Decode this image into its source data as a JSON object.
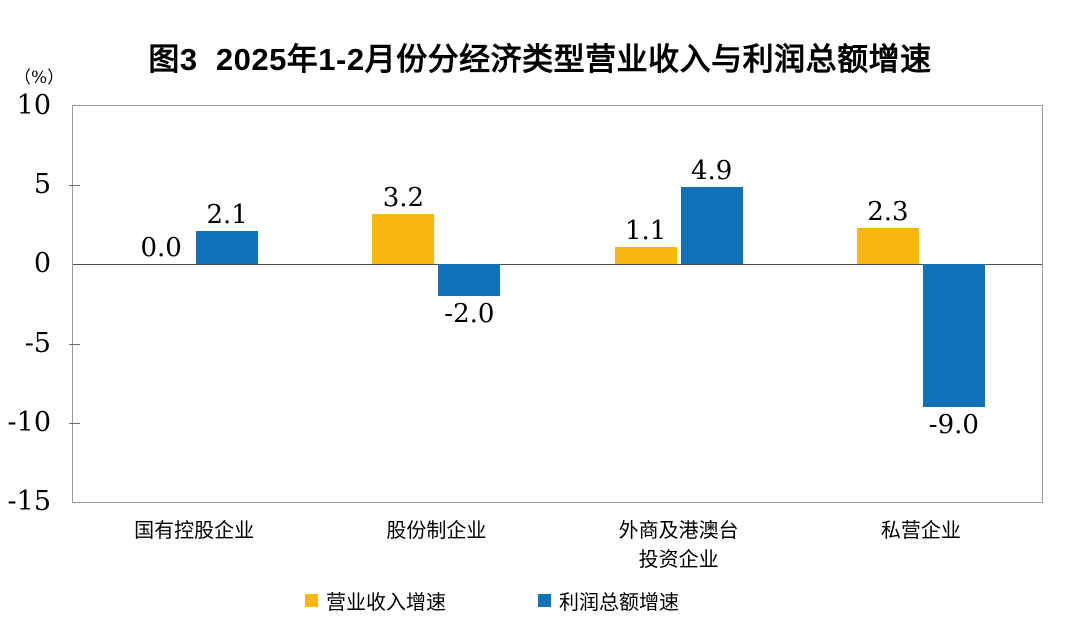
{
  "figure": {
    "title": "图3  2025年1-2月份分经济类型营业收入与利润总额增速",
    "unit_label": "（%）"
  },
  "chart_data": {
    "type": "bar",
    "title": "图3  2025年1-2月份分经济类型营业收入与利润总额增速",
    "unit": "（%）",
    "categories": [
      "国有控股企业",
      "股份制企业",
      "外商及港澳台\n投资企业",
      "私营企业"
    ],
    "series": [
      {
        "name": "营业收入增速",
        "color": "#fbb70f",
        "values": [
          0.0,
          3.2,
          1.1,
          2.3
        ]
      },
      {
        "name": "利润总额增速",
        "color": "#1272b9",
        "values": [
          2.1,
          -2.0,
          4.9,
          -9.0
        ]
      }
    ],
    "ylim": [
      -15,
      10
    ],
    "y_ticks": [
      10,
      5,
      0,
      -5,
      -10,
      -15
    ],
    "grid": false,
    "legend_position": "bottom",
    "value_labels": true
  },
  "colors": {
    "revenue_bar": "#fbb70f",
    "profit_bar": "#1272b9",
    "plot_border": "#9b9b9b",
    "zero_line": "#4d4d4d",
    "text": "#000000"
  }
}
